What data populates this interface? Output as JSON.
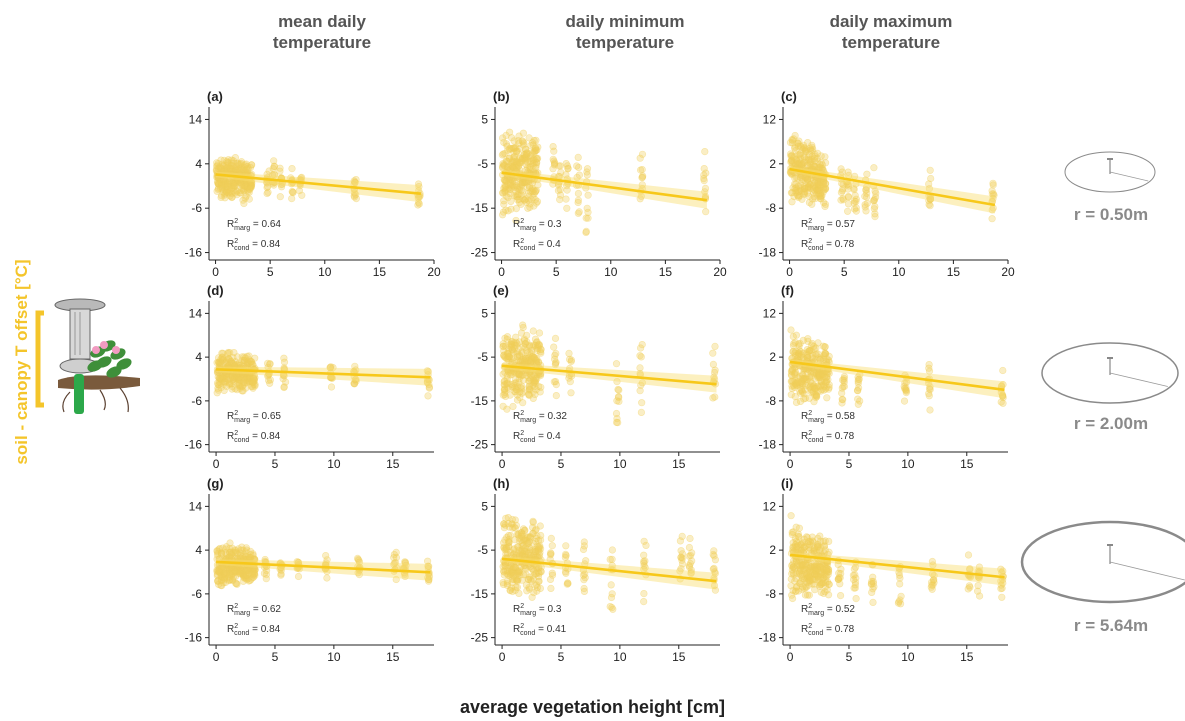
{
  "colors": {
    "points": "#f0cf58",
    "line": "#f7c81a",
    "ribbon": "#f8de72",
    "axis": "#222222",
    "title": "#555555",
    "ylabel": "#f4c52b",
    "radius": "#8a8a8a"
  },
  "column_titles": [
    "mean daily\ntemperature",
    "daily minimum\ntemperature",
    "daily maximum\ntemperature"
  ],
  "radius_labels": [
    "r = 0.50m",
    "r = 2.00m",
    "r = 5.64m"
  ],
  "ylabel": "soil - canopy T offset [°C]",
  "xlabel": "average vegetation height [cm]",
  "icons": [
    "soil-sensor-plant-icon",
    "radius-circle-icon"
  ],
  "chart_data": [
    {
      "type": "scatter",
      "panel": "(a)",
      "x_ticks": [
        0,
        5,
        10,
        15,
        20
      ],
      "y_ticks": [
        14,
        4,
        -6,
        -16
      ],
      "xlim": [
        -0.6,
        20
      ],
      "ylim": [
        -17,
        15
      ],
      "fit": {
        "intercept": 1.6,
        "slope": -0.23
      },
      "r2_marg": "0.64",
      "r2_cond": "0.84",
      "x_positions": [
        0.2,
        0.5,
        0.8,
        1.1,
        1.4,
        1.7,
        2.0,
        2.3,
        2.6,
        2.9,
        3.2,
        4.8,
        5.3,
        6.0,
        7.0,
        7.8,
        12.8,
        18.6
      ],
      "y_spread": [
        [
          -3.5,
          5.5
        ],
        [
          -5,
          6
        ],
        [
          -5,
          6
        ],
        [
          -4,
          6
        ],
        [
          -4,
          6
        ],
        [
          -4,
          6
        ],
        [
          -4,
          6
        ],
        [
          -4,
          5
        ],
        [
          -5,
          5
        ],
        [
          -4,
          6
        ],
        [
          -4,
          5
        ],
        [
          -4,
          5
        ],
        [
          -4,
          5
        ],
        [
          -4,
          4
        ],
        [
          -5,
          4
        ],
        [
          -5,
          3
        ],
        [
          -5,
          2
        ],
        [
          -7,
          0
        ]
      ]
    },
    {
      "type": "scatter",
      "panel": "(b)",
      "x_ticks": [
        0,
        5,
        10,
        15,
        20
      ],
      "y_ticks": [
        5,
        -5,
        -15,
        -25
      ],
      "xlim": [
        -0.6,
        20
      ],
      "ylim": [
        -26,
        6
      ],
      "fit": {
        "intercept": -7.0,
        "slope": -0.33
      },
      "r2_marg": "0.3",
      "r2_cond": "0.4",
      "x_positions": [
        0.2,
        0.5,
        0.8,
        1.1,
        1.4,
        1.7,
        2.0,
        2.3,
        2.6,
        2.9,
        3.2,
        4.8,
        5.3,
        6.0,
        7.0,
        7.8,
        12.8,
        18.6
      ],
      "y_spread": [
        [
          -18,
          3
        ],
        [
          -18,
          4
        ],
        [
          -17,
          4
        ],
        [
          -17,
          3
        ],
        [
          -18,
          3
        ],
        [
          -16,
          3
        ],
        [
          -17,
          3
        ],
        [
          -16,
          2
        ],
        [
          -17,
          2
        ],
        [
          -16,
          2
        ],
        [
          -15,
          2
        ],
        [
          -13,
          1
        ],
        [
          -16,
          0
        ],
        [
          -17,
          -2
        ],
        [
          -20,
          -1
        ],
        [
          -21,
          -4
        ],
        [
          -14,
          -2
        ],
        [
          -20,
          0
        ]
      ]
    },
    {
      "type": "scatter",
      "panel": "(c)",
      "x_ticks": [
        0,
        5,
        10,
        15,
        20
      ],
      "y_ticks": [
        12,
        2,
        -8,
        -18
      ],
      "xlim": [
        -0.6,
        20
      ],
      "ylim": [
        -19,
        13
      ],
      "fit": {
        "intercept": 0.8,
        "slope": -0.43
      },
      "r2_marg": "0.57",
      "r2_cond": "0.78",
      "x_positions": [
        0.2,
        0.5,
        0.8,
        1.1,
        1.4,
        1.7,
        2.0,
        2.3,
        2.6,
        2.9,
        3.2,
        4.8,
        5.3,
        6.0,
        7.0,
        7.8,
        12.8,
        18.6
      ],
      "y_spread": [
        [
          -8,
          11
        ],
        [
          -10,
          10
        ],
        [
          -10,
          9
        ],
        [
          -9,
          8
        ],
        [
          -10,
          8
        ],
        [
          -10,
          8
        ],
        [
          -9,
          7
        ],
        [
          -9,
          7
        ],
        [
          -9,
          6
        ],
        [
          -9,
          6
        ],
        [
          -9,
          5
        ],
        [
          -9,
          4
        ],
        [
          -10,
          3
        ],
        [
          -11,
          3
        ],
        [
          -12,
          2
        ],
        [
          -13,
          2
        ],
        [
          -10,
          2
        ],
        [
          -12,
          0
        ]
      ]
    },
    {
      "type": "scatter",
      "panel": "(d)",
      "x_ticks": [
        0,
        5,
        10,
        15
      ],
      "y_ticks": [
        14,
        4,
        -6,
        -16
      ],
      "xlim": [
        -0.6,
        18.5
      ],
      "ylim": [
        -17,
        15
      ],
      "fit": {
        "intercept": 1.2,
        "slope": -0.1
      },
      "r2_marg": "0.65",
      "r2_cond": "0.84",
      "x_positions": [
        0.2,
        0.5,
        0.8,
        1.1,
        1.4,
        1.7,
        2.0,
        2.3,
        2.6,
        2.9,
        3.2,
        4.5,
        5.8,
        9.8,
        11.8,
        18.0
      ],
      "y_spread": [
        [
          -5,
          6
        ],
        [
          -5,
          6
        ],
        [
          -5,
          6
        ],
        [
          -4,
          6
        ],
        [
          -4,
          6
        ],
        [
          -4,
          5
        ],
        [
          -4,
          5
        ],
        [
          -4,
          5
        ],
        [
          -4,
          5
        ],
        [
          -4,
          5
        ],
        [
          -4,
          4
        ],
        [
          -4,
          4
        ],
        [
          -4,
          4
        ],
        [
          -3,
          3
        ],
        [
          -3,
          3
        ],
        [
          -5,
          2
        ]
      ]
    },
    {
      "type": "scatter",
      "panel": "(e)",
      "x_ticks": [
        0,
        5,
        10,
        15
      ],
      "y_ticks": [
        5,
        -5,
        -15,
        -25
      ],
      "xlim": [
        -0.6,
        18.5
      ],
      "ylim": [
        -26,
        6
      ],
      "fit": {
        "intercept": -7.0,
        "slope": -0.23
      },
      "r2_marg": "0.32",
      "r2_cond": "0.4",
      "x_positions": [
        0.2,
        0.5,
        0.8,
        1.1,
        1.4,
        1.7,
        2.0,
        2.3,
        2.6,
        2.9,
        3.2,
        4.5,
        5.8,
        9.8,
        11.8,
        18.0
      ],
      "y_spread": [
        [
          -18,
          3
        ],
        [
          -18,
          4
        ],
        [
          -18,
          4
        ],
        [
          -17,
          3
        ],
        [
          -18,
          3
        ],
        [
          -16,
          3
        ],
        [
          -16,
          3
        ],
        [
          -16,
          2
        ],
        [
          -16,
          2
        ],
        [
          -15,
          2
        ],
        [
          -15,
          2
        ],
        [
          -16,
          1
        ],
        [
          -14,
          -3
        ],
        [
          -23,
          -4
        ],
        [
          -18,
          0
        ],
        [
          -18,
          -1
        ]
      ]
    },
    {
      "type": "scatter",
      "panel": "(f)",
      "x_ticks": [
        0,
        5,
        10,
        15
      ],
      "y_ticks": [
        12,
        2,
        -8,
        -18
      ],
      "xlim": [
        -0.6,
        18.5
      ],
      "ylim": [
        -19,
        13
      ],
      "fit": {
        "intercept": 0.9,
        "slope": -0.35
      },
      "r2_marg": "0.58",
      "r2_cond": "0.78",
      "x_positions": [
        0.2,
        0.5,
        0.8,
        1.1,
        1.4,
        1.7,
        2.0,
        2.3,
        2.6,
        2.9,
        3.2,
        4.5,
        5.8,
        9.8,
        11.8,
        18.0
      ],
      "y_spread": [
        [
          -10,
          11
        ],
        [
          -10,
          10
        ],
        [
          -10,
          9
        ],
        [
          -10,
          8
        ],
        [
          -10,
          8
        ],
        [
          -10,
          7
        ],
        [
          -10,
          7
        ],
        [
          -9,
          6
        ],
        [
          -9,
          6
        ],
        [
          -9,
          6
        ],
        [
          -9,
          5
        ],
        [
          -10,
          3
        ],
        [
          -12,
          2
        ],
        [
          -11,
          1
        ],
        [
          -11,
          1
        ],
        [
          -12,
          0
        ]
      ]
    },
    {
      "type": "scatter",
      "panel": "(g)",
      "x_ticks": [
        0,
        5,
        10,
        15
      ],
      "y_ticks": [
        14,
        4,
        -6,
        -16
      ],
      "xlim": [
        -0.6,
        18.5
      ],
      "ylim": [
        -17,
        15
      ],
      "fit": {
        "intercept": 1.3,
        "slope": -0.13
      },
      "r2_marg": "0.62",
      "r2_cond": "0.84",
      "x_positions": [
        0.2,
        0.5,
        0.8,
        1.1,
        1.4,
        1.7,
        2.0,
        2.3,
        2.6,
        2.9,
        3.2,
        4.2,
        5.5,
        7.0,
        9.3,
        12.1,
        15.2,
        16.0,
        18.0
      ],
      "y_spread": [
        [
          -5,
          6
        ],
        [
          -5,
          7
        ],
        [
          -5,
          6
        ],
        [
          -4,
          6
        ],
        [
          -4,
          6
        ],
        [
          -4,
          6
        ],
        [
          -4,
          5
        ],
        [
          -4,
          5
        ],
        [
          -4,
          5
        ],
        [
          -4,
          5
        ],
        [
          -4,
          4
        ],
        [
          -4,
          4
        ],
        [
          -3,
          3
        ],
        [
          -3,
          3
        ],
        [
          -3,
          3
        ],
        [
          -3,
          3
        ],
        [
          -3,
          4
        ],
        [
          -3,
          3
        ],
        [
          -4,
          2
        ]
      ]
    },
    {
      "type": "scatter",
      "panel": "(h)",
      "x_ticks": [
        0,
        5,
        10,
        15
      ],
      "y_ticks": [
        5,
        -5,
        -15,
        -25
      ],
      "xlim": [
        -0.6,
        18.5
      ],
      "ylim": [
        -26,
        6
      ],
      "fit": {
        "intercept": -7.0,
        "slope": -0.28
      },
      "r2_marg": "0.3",
      "r2_cond": "0.41",
      "x_positions": [
        0.2,
        0.5,
        0.8,
        1.1,
        1.4,
        1.7,
        2.0,
        2.3,
        2.6,
        2.9,
        3.2,
        4.2,
        5.5,
        7.0,
        9.3,
        12.1,
        15.2,
        16.0,
        18.0
      ],
      "y_spread": [
        [
          -18,
          4
        ],
        [
          -18,
          4
        ],
        [
          -18,
          4
        ],
        [
          -17,
          3
        ],
        [
          -17,
          3
        ],
        [
          -16,
          3
        ],
        [
          -16,
          3
        ],
        [
          -16,
          2
        ],
        [
          -16,
          2
        ],
        [
          -15,
          2
        ],
        [
          -15,
          2
        ],
        [
          -15,
          0
        ],
        [
          -16,
          -1
        ],
        [
          -16,
          -1
        ],
        [
          -21,
          -3
        ],
        [
          -19,
          -2
        ],
        [
          -14,
          1
        ],
        [
          -14,
          0
        ],
        [
          -16,
          -2
        ]
      ]
    },
    {
      "type": "scatter",
      "panel": "(i)",
      "x_ticks": [
        0,
        5,
        10,
        15
      ],
      "y_ticks": [
        12,
        2,
        -8,
        -18
      ],
      "xlim": [
        -0.6,
        18.5
      ],
      "ylim": [
        -19,
        13
      ],
      "fit": {
        "intercept": 0.9,
        "slope": -0.28
      },
      "r2_marg": "0.52",
      "r2_cond": "0.78",
      "x_positions": [
        0.2,
        0.5,
        0.8,
        1.1,
        1.4,
        1.7,
        2.0,
        2.3,
        2.6,
        2.9,
        3.2,
        4.2,
        5.5,
        7.0,
        9.3,
        12.1,
        15.2,
        16.0,
        18.0
      ],
      "y_spread": [
        [
          -10,
          11
        ],
        [
          -10,
          10
        ],
        [
          -10,
          9
        ],
        [
          -10,
          8
        ],
        [
          -10,
          8
        ],
        [
          -10,
          7
        ],
        [
          -9,
          7
        ],
        [
          -9,
          6
        ],
        [
          -9,
          6
        ],
        [
          -9,
          5
        ],
        [
          -9,
          5
        ],
        [
          -10,
          3
        ],
        [
          -11,
          2
        ],
        [
          -12,
          1
        ],
        [
          -12,
          1
        ],
        [
          -12,
          1
        ],
        [
          -10,
          3
        ],
        [
          -11,
          1
        ],
        [
          -11,
          0
        ]
      ]
    }
  ]
}
